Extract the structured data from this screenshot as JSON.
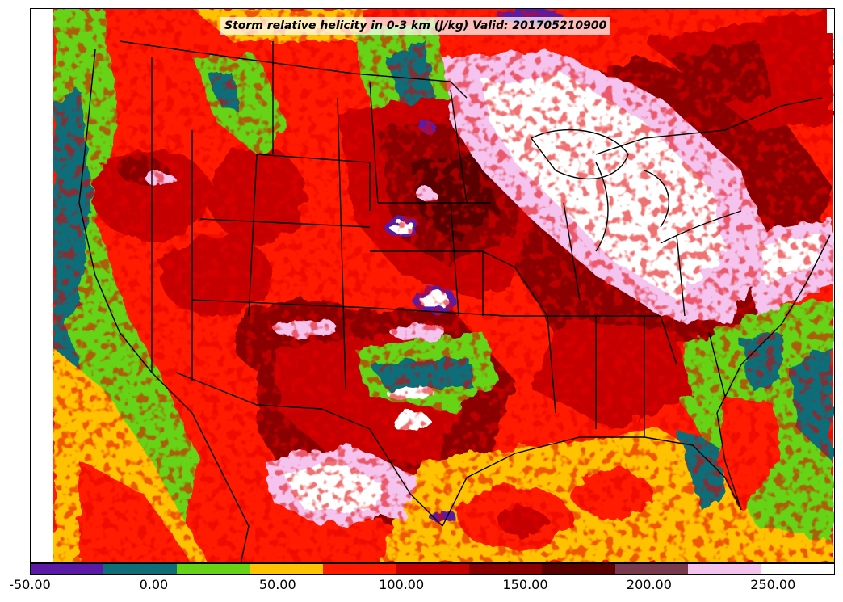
{
  "title": "Storm relative helicity in 0-3 km (J/kg) Valid: 201705210900",
  "colorbar": {
    "colors": [
      "#5a1aa5",
      "#0f6d78",
      "#66d414",
      "#ffc200",
      "#ff1a00",
      "#c40000",
      "#8a0000",
      "#5a0000",
      "#7a3a4e",
      "#f4c4ee",
      "#ffffff"
    ],
    "tick_labels": [
      "-50.00",
      "0.00",
      "50.00",
      "100.00",
      "150.00",
      "200.00",
      "250.00"
    ],
    "tick_values": [
      -50,
      0,
      50,
      100,
      150,
      200,
      250
    ],
    "range": [
      -50,
      275
    ]
  }
}
